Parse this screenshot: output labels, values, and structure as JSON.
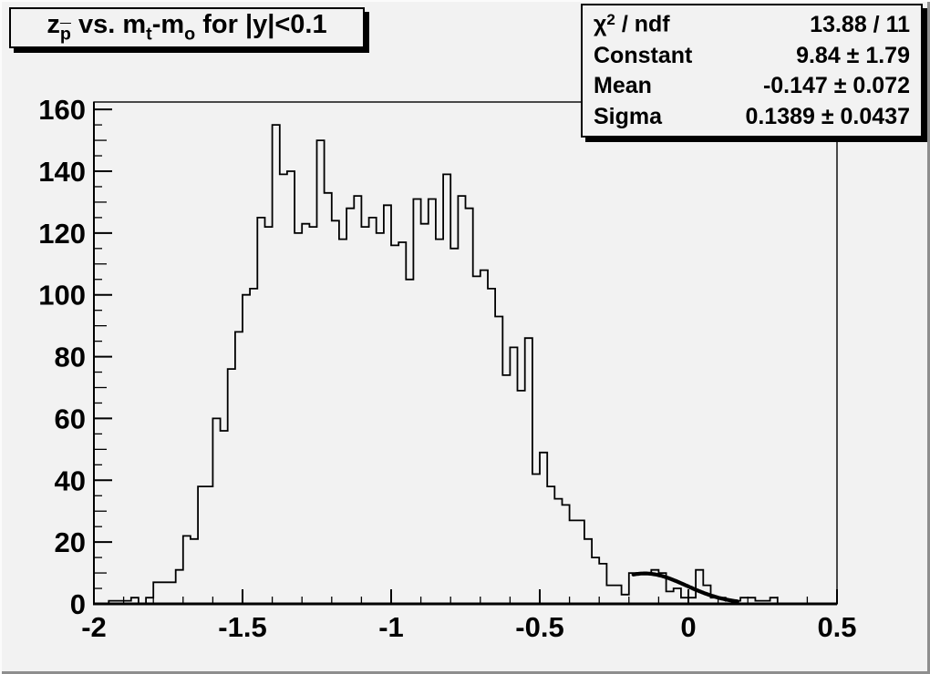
{
  "app": {
    "kind": "histogram-canvas"
  },
  "title": {
    "text": "z_p̄ vs. m_t-m_o for |y|<0.1",
    "segments": [
      {
        "t": "z"
      },
      {
        "t": "p",
        "sub": true,
        "bar": true
      },
      {
        "t": " vs. m"
      },
      {
        "t": "t",
        "sub": true
      },
      {
        "t": "-m"
      },
      {
        "t": "o",
        "sub": true
      },
      {
        "t": " for |y|<0.1"
      }
    ]
  },
  "stats_box": {
    "rows": [
      {
        "label_segments": [
          {
            "t": "χ"
          },
          {
            "t": "2",
            "sup": true
          },
          {
            "t": " / ndf"
          }
        ],
        "value": "13.88 / 11"
      },
      {
        "label_segments": [
          {
            "t": "Constant"
          }
        ],
        "value": "9.84 ± 1.79"
      },
      {
        "label_segments": [
          {
            "t": "Mean"
          }
        ],
        "value": "-0.147 ± 0.072"
      },
      {
        "label_segments": [
          {
            "t": "Sigma"
          }
        ],
        "value": "0.1389 ± 0.0437"
      }
    ]
  },
  "chart_data": {
    "type": "bar",
    "subtype": "step-histogram",
    "title": "z_p vs. m_t-m_o for |y|<0.1",
    "xlabel": "",
    "ylabel": "",
    "xlim": [
      -2,
      0.5
    ],
    "ylim": [
      0,
      162.4
    ],
    "bin_start": -2,
    "bin_width": 0.025,
    "n_bins": 100,
    "values": [
      0,
      0,
      1,
      1,
      1,
      2,
      0,
      2,
      7,
      7,
      7,
      11,
      22,
      21,
      38,
      38,
      60,
      56,
      76,
      88,
      100,
      102,
      125,
      122,
      155,
      139,
      140,
      120,
      123,
      122,
      150,
      133,
      124,
      118,
      128,
      132,
      122,
      125,
      120,
      129,
      116,
      117,
      105,
      131,
      123,
      131,
      118,
      139,
      115,
      132,
      128,
      106,
      108,
      102,
      93,
      74,
      83,
      69,
      86,
      42,
      49,
      38,
      34,
      32,
      27,
      27,
      21,
      15,
      13,
      6,
      6,
      3,
      10,
      10,
      10,
      11,
      10,
      4,
      5,
      2,
      2,
      11,
      6,
      2,
      2,
      1,
      1,
      2,
      2,
      1,
      1,
      2,
      0,
      0,
      0,
      0,
      0,
      0,
      0,
      0
    ],
    "x_ticks": [
      -2,
      -1.5,
      -1,
      -0.5,
      0,
      0.5
    ],
    "x_tick_labels": [
      "-2",
      "-1.5",
      "-1",
      "-0.5",
      "0",
      "0.5"
    ],
    "x_minor_step": 0.1,
    "y_ticks": [
      0,
      20,
      40,
      60,
      80,
      100,
      120,
      140,
      160
    ],
    "y_tick_labels": [
      "0",
      "20",
      "40",
      "60",
      "80",
      "100",
      "120",
      "140",
      "160"
    ],
    "y_minor_step": 5,
    "grid": false,
    "legend": false,
    "fit_curve": {
      "type": "gaussian",
      "constant": 9.84,
      "mean": -0.147,
      "sigma": 0.1389,
      "draw_range": [
        -0.185,
        0.165
      ]
    },
    "fit_results": {
      "chi2": 13.88,
      "ndf": 11,
      "constant": 9.84,
      "constant_err": 1.79,
      "mean": -0.147,
      "mean_err": 0.072,
      "sigma": 0.1389,
      "sigma_err": 0.0437
    }
  },
  "colors": {
    "canvas_bg": "#f2f2f2",
    "pave_bg": "#f2f2f2",
    "line": "#000000",
    "text": "#000000",
    "shadow": "#000000",
    "bevel_light": "#fbfbfb",
    "bevel_dark": "#8e8e8e"
  }
}
